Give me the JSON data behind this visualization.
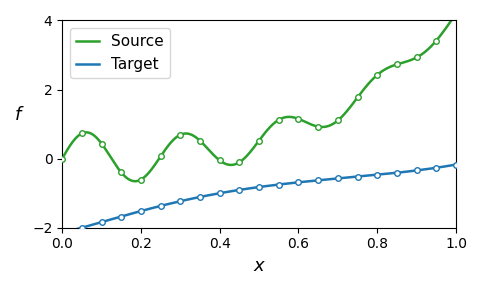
{
  "title": "",
  "xlabel": "x",
  "ylabel": "f",
  "xlim": [
    0.0,
    1.0
  ],
  "ylim": [
    -2.0,
    4.0
  ],
  "source_color": "#2ca02c",
  "target_color": "#1f77b4",
  "source_label": "Source",
  "target_label": "Target",
  "marker_size": 4,
  "n_points_curve": 500,
  "n_marker_points": 20,
  "legend_fontsize": 11,
  "axis_label_fontsize": 13,
  "tick_fontsize": 10,
  "linewidth": 1.8
}
